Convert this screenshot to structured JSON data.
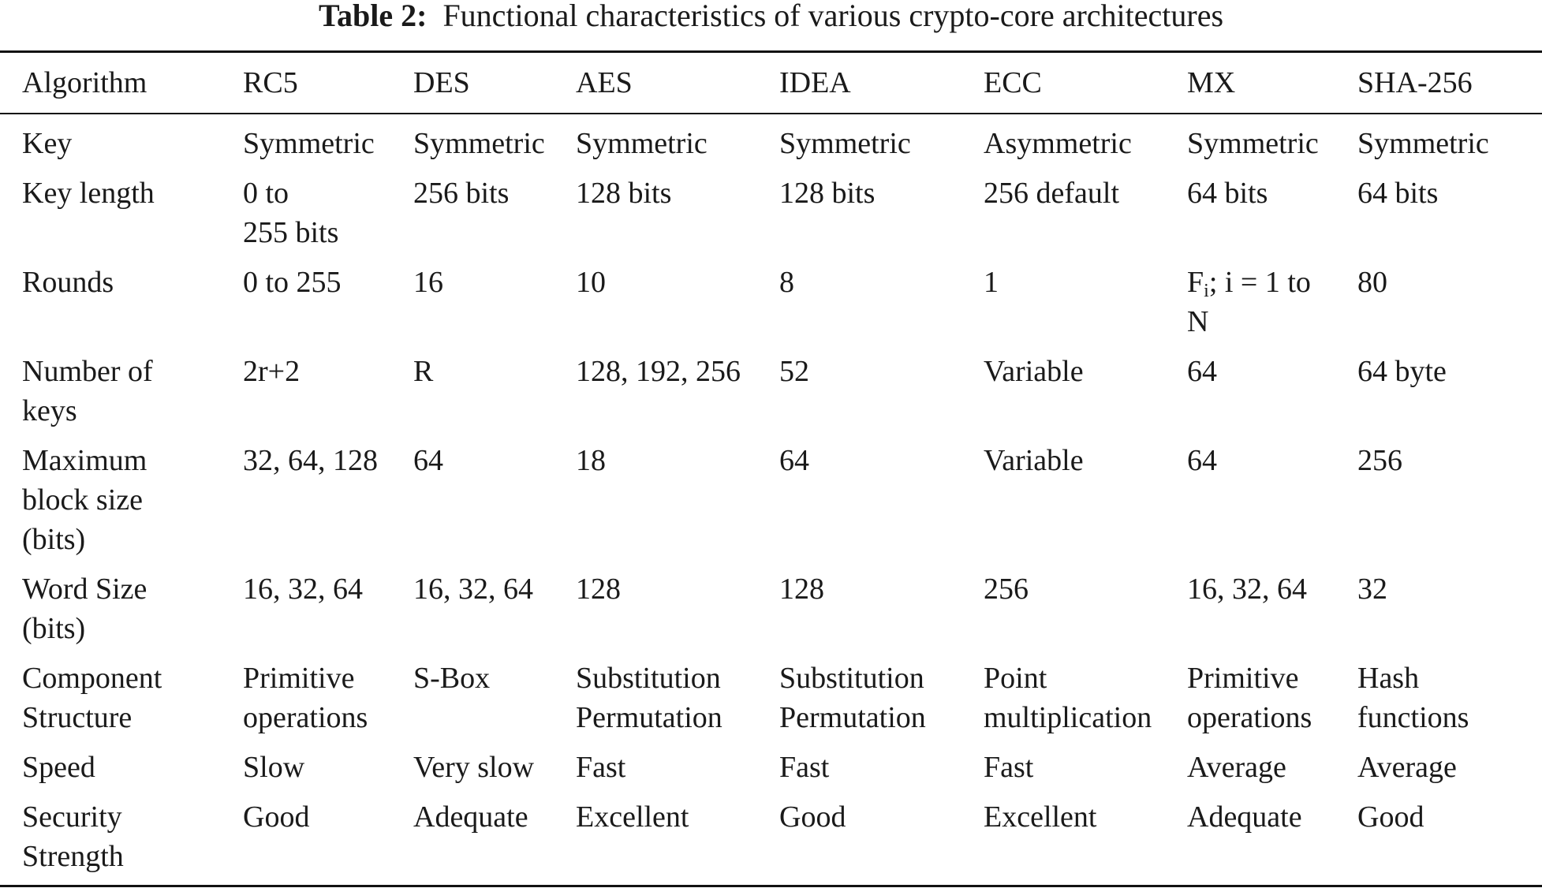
{
  "caption": {
    "label": "Table 2:",
    "title": "Functional characteristics of various crypto-core architectures"
  },
  "table": {
    "headers": [
      "Algorithm",
      "RC5",
      "DES",
      "AES",
      "IDEA",
      "ECC",
      "MX",
      "SHA-256"
    ],
    "rows": [
      {
        "name": "key",
        "cells": [
          [
            "Key"
          ],
          [
            "Symmetric"
          ],
          [
            "Symmetric"
          ],
          [
            "Symmetric"
          ],
          [
            "Symmetric"
          ],
          [
            "Asymmetric"
          ],
          [
            "Symmetric"
          ],
          [
            "Symmetric"
          ]
        ]
      },
      {
        "name": "key-length",
        "cells": [
          [
            "Key length"
          ],
          [
            "0 to",
            "255 bits"
          ],
          [
            "256 bits"
          ],
          [
            "128 bits"
          ],
          [
            "128 bits"
          ],
          [
            "256 default"
          ],
          [
            "64 bits"
          ],
          [
            "64 bits"
          ]
        ]
      },
      {
        "name": "rounds",
        "cells": [
          [
            "Rounds"
          ],
          [
            "0 to 255"
          ],
          [
            "16"
          ],
          [
            "10"
          ],
          [
            "8"
          ],
          [
            "1"
          ],
          [
            {
              "f": "F",
              "sub": "i",
              "rest": "; i = 1 to"
            },
            "N"
          ],
          [
            "80"
          ]
        ]
      },
      {
        "name": "number-of-keys",
        "cells": [
          [
            "Number of",
            "keys"
          ],
          [
            "2r+2"
          ],
          [
            "R"
          ],
          [
            "128, 192, 256"
          ],
          [
            "52"
          ],
          [
            "Variable"
          ],
          [
            "64"
          ],
          [
            "64 byte"
          ]
        ]
      },
      {
        "name": "maximum-block-size",
        "cells": [
          [
            "Maximum",
            "block size",
            "(bits)"
          ],
          [
            "32, 64, 128"
          ],
          [
            "64"
          ],
          [
            "18"
          ],
          [
            "64"
          ],
          [
            "Variable"
          ],
          [
            "64"
          ],
          [
            "256"
          ]
        ]
      },
      {
        "name": "word-size",
        "cells": [
          [
            "Word Size",
            "(bits)"
          ],
          [
            "16, 32, 64"
          ],
          [
            "16, 32, 64"
          ],
          [
            "128"
          ],
          [
            "128"
          ],
          [
            "256"
          ],
          [
            "16, 32, 64"
          ],
          [
            "32"
          ]
        ]
      },
      {
        "name": "component-structure",
        "cells": [
          [
            "Component",
            "Structure"
          ],
          [
            "Primitive",
            "operations"
          ],
          [
            "S-Box"
          ],
          [
            "Substitution",
            "Permutation"
          ],
          [
            "Substitution",
            "Permutation"
          ],
          [
            "Point",
            "multiplication"
          ],
          [
            "Primitive",
            "operations"
          ],
          [
            "Hash",
            "functions"
          ]
        ]
      },
      {
        "name": "speed",
        "cells": [
          [
            "Speed"
          ],
          [
            "Slow"
          ],
          [
            "Very slow"
          ],
          [
            "Fast"
          ],
          [
            "Fast"
          ],
          [
            "Fast"
          ],
          [
            "Average"
          ],
          [
            "Average"
          ]
        ]
      },
      {
        "name": "security-strength",
        "cells": [
          [
            "Security",
            "Strength"
          ],
          [
            "Good"
          ],
          [
            "Adequate"
          ],
          [
            "Excellent"
          ],
          [
            "Good"
          ],
          [
            "Excellent"
          ],
          [
            "Adequate"
          ],
          [
            "Good"
          ]
        ]
      }
    ]
  }
}
